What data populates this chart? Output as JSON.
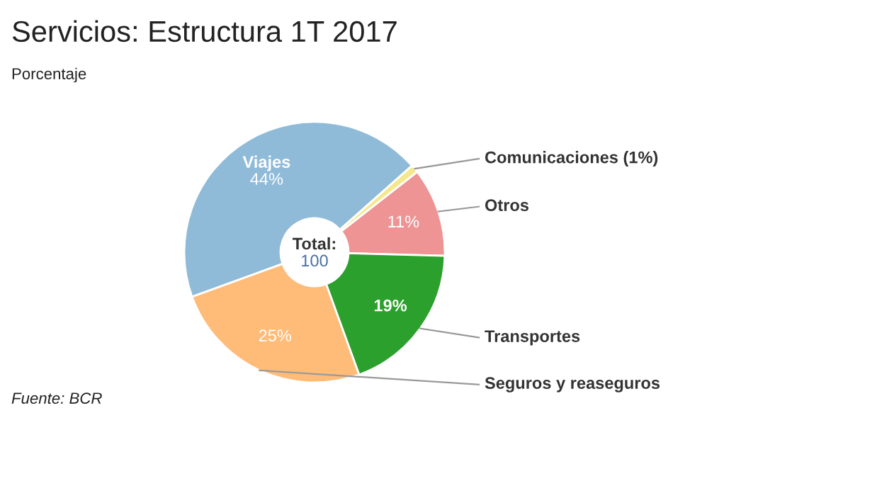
{
  "chart_data": {
    "type": "donut",
    "title": "Servicios: Estructura 1T 2017",
    "subtitle": "Porcentaje",
    "categories": [
      "Viajes",
      "Comunicaciones (1%)",
      "Otros",
      "Transportes",
      "Seguros y reaseguros"
    ],
    "values": [
      44,
      1,
      11,
      19,
      25
    ],
    "colors": [
      "#8fbbd9",
      "#f5e88c",
      "#ee9494",
      "#2ca02c",
      "#ffbb78"
    ],
    "value_labels": [
      "44%",
      null,
      "11%",
      "19%",
      "25%"
    ],
    "annotations": [
      "Total:",
      "100",
      "Fuente: BCR"
    ],
    "legend": false
  }
}
